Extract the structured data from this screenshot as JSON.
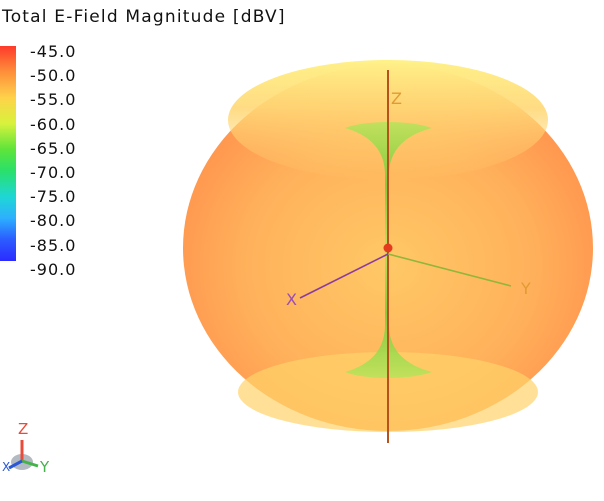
{
  "title": "Total E-Field Magnitude [dBV]",
  "legend": {
    "ticks": [
      "-45.0",
      "-50.0",
      "-55.0",
      "-60.0",
      "-65.0",
      "-70.0",
      "-75.0",
      "-80.0",
      "-85.0",
      "-90.0"
    ],
    "colors": [
      "#ff3a2a",
      "#ff8f3a",
      "#ffd24a",
      "#d8f23c",
      "#5fe43a",
      "#2ae06a",
      "#1ed7d5",
      "#2db0ff",
      "#2b5cff",
      "#2b2bff"
    ]
  },
  "axes": {
    "z_label": "Z",
    "y_label": "Y",
    "x_label": "X"
  },
  "triad": {
    "z_label": "Z",
    "y_label": "Y",
    "x_label": "X"
  },
  "colors": {
    "pattern_outer": "#ff8b4a",
    "pattern_mid": "#ffb35a",
    "pattern_top": "#f8e57a",
    "null_green": "#6fcd3a",
    "axis_z": "#b8521d",
    "axis_y": "#90b63a",
    "axis_x": "#8a3ca0",
    "label_orange": "#e39a34",
    "label_purple": "#9a4cb7"
  }
}
